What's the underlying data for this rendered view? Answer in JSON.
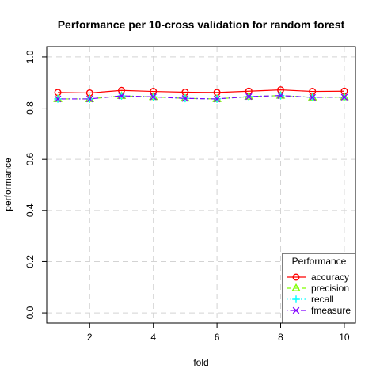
{
  "chart_data": {
    "type": "line",
    "title": "Performance per 10-cross validation for random forest",
    "xlabel": "fold",
    "ylabel": "performance",
    "xlim": [
      0.65,
      10.35
    ],
    "ylim": [
      -0.04,
      1.04
    ],
    "x_ticks": [
      2,
      4,
      6,
      8,
      10
    ],
    "y_ticks": [
      0.0,
      0.2,
      0.4,
      0.6,
      0.8,
      1.0
    ],
    "y_tick_labels": [
      "0.0",
      "0.2",
      "0.4",
      "0.6",
      "0.8",
      "1.0"
    ],
    "grid": true,
    "legend": {
      "title": "Performance",
      "position": "bottom-right"
    },
    "x": [
      1,
      2,
      3,
      4,
      5,
      6,
      7,
      8,
      9,
      10
    ],
    "series": [
      {
        "name": "accuracy",
        "color": "#ff0000",
        "marker": "circle",
        "line": "solid",
        "values": [
          0.861,
          0.859,
          0.869,
          0.865,
          0.862,
          0.861,
          0.866,
          0.871,
          0.865,
          0.866
        ]
      },
      {
        "name": "precision",
        "color": "#80ff00",
        "marker": "triangle",
        "line": "dashed",
        "values": [
          0.836,
          0.836,
          0.848,
          0.844,
          0.838,
          0.836,
          0.845,
          0.849,
          0.842,
          0.843
        ]
      },
      {
        "name": "recall",
        "color": "#00ffff",
        "marker": "plus",
        "line": "dotted",
        "values": [
          0.836,
          0.836,
          0.848,
          0.844,
          0.838,
          0.836,
          0.845,
          0.849,
          0.842,
          0.843
        ]
      },
      {
        "name": "fmeasure",
        "color": "#8000ff",
        "marker": "cross",
        "line": "dotdash",
        "values": [
          0.836,
          0.836,
          0.848,
          0.844,
          0.838,
          0.836,
          0.845,
          0.849,
          0.842,
          0.843
        ]
      }
    ]
  }
}
